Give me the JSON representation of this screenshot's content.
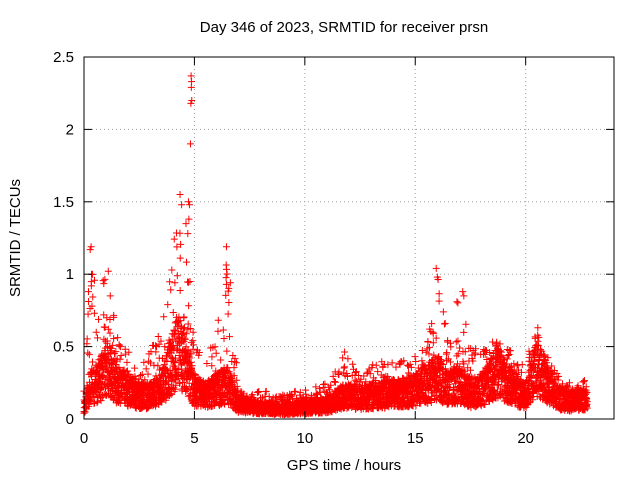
{
  "chart_data": {
    "type": "scatter",
    "title": "Day 346 of 2023, SRMTID for receiver prsn",
    "xlabel": "GPS time / hours",
    "ylabel": "SRMTID / TECUs",
    "xlim": [
      0,
      24
    ],
    "ylim": [
      0,
      2.5
    ],
    "x_ticks": [
      0,
      5,
      10,
      15,
      20
    ],
    "x_tick_labels": [
      "0",
      "5",
      "10",
      "15",
      "20"
    ],
    "y_ticks": [
      0,
      0.5,
      1,
      1.5,
      2,
      2.5
    ],
    "y_tick_labels": [
      "0",
      "0.5",
      "1",
      "1.5",
      "2",
      "2.5"
    ],
    "grid": true,
    "marker": "plus",
    "color": "#ff0000",
    "series": [
      {
        "name": "SRMTID",
        "envelope_hours": [
          0,
          0.3,
          0.6,
          1,
          1.5,
          2,
          2.5,
          3,
          3.5,
          4,
          4.3,
          4.6,
          5,
          5.5,
          6,
          6.5,
          7,
          8,
          9,
          10,
          11,
          11.8,
          12.5,
          13,
          14,
          15,
          15.5,
          16,
          16.5,
          17,
          17.5,
          18,
          18.7,
          19.5,
          20,
          20.5,
          21,
          21.5,
          22,
          22.8
        ],
        "envelope_typical": [
          0.1,
          0.3,
          0.3,
          0.45,
          0.3,
          0.25,
          0.2,
          0.2,
          0.25,
          0.5,
          0.6,
          0.5,
          0.25,
          0.2,
          0.25,
          0.3,
          0.12,
          0.1,
          0.08,
          0.1,
          0.12,
          0.2,
          0.18,
          0.2,
          0.22,
          0.25,
          0.3,
          0.35,
          0.28,
          0.3,
          0.22,
          0.25,
          0.4,
          0.25,
          0.2,
          0.45,
          0.3,
          0.18,
          0.15,
          0.18
        ],
        "envelope_max": [
          0.5,
          1.2,
          0.9,
          1.05,
          0.6,
          0.5,
          0.4,
          0.5,
          0.6,
          1.2,
          1.55,
          1.45,
          0.5,
          0.45,
          0.6,
          1.2,
          0.2,
          0.2,
          0.18,
          0.2,
          0.25,
          0.47,
          0.35,
          0.4,
          0.4,
          0.45,
          0.5,
          1.05,
          0.55,
          0.9,
          0.5,
          0.5,
          0.55,
          0.45,
          0.4,
          0.63,
          0.45,
          0.3,
          0.25,
          0.28
        ],
        "peak_points": [
          {
            "x": 4.85,
            "y": 2.37
          },
          {
            "x": 4.87,
            "y": 2.33
          },
          {
            "x": 4.86,
            "y": 2.29
          },
          {
            "x": 4.88,
            "y": 2.2
          },
          {
            "x": 4.84,
            "y": 2.18
          },
          {
            "x": 4.82,
            "y": 1.9
          },
          {
            "x": 4.35,
            "y": 1.55
          },
          {
            "x": 4.42,
            "y": 1.48
          },
          {
            "x": 4.73,
            "y": 1.5
          },
          {
            "x": 4.78,
            "y": 1.48
          },
          {
            "x": 4.75,
            "y": 1.38
          },
          {
            "x": 4.7,
            "y": 1.28
          },
          {
            "x": 6.45,
            "y": 1.19
          },
          {
            "x": 0.32,
            "y": 1.19
          },
          {
            "x": 0.28,
            "y": 1.17
          },
          {
            "x": 1.1,
            "y": 1.02
          },
          {
            "x": 15.95,
            "y": 1.04
          },
          {
            "x": 16.0,
            "y": 0.98
          },
          {
            "x": 17.15,
            "y": 0.88
          },
          {
            "x": 17.2,
            "y": 0.85
          },
          {
            "x": 6.45,
            "y": 0.93
          },
          {
            "x": 20.55,
            "y": 0.63
          }
        ]
      }
    ]
  }
}
